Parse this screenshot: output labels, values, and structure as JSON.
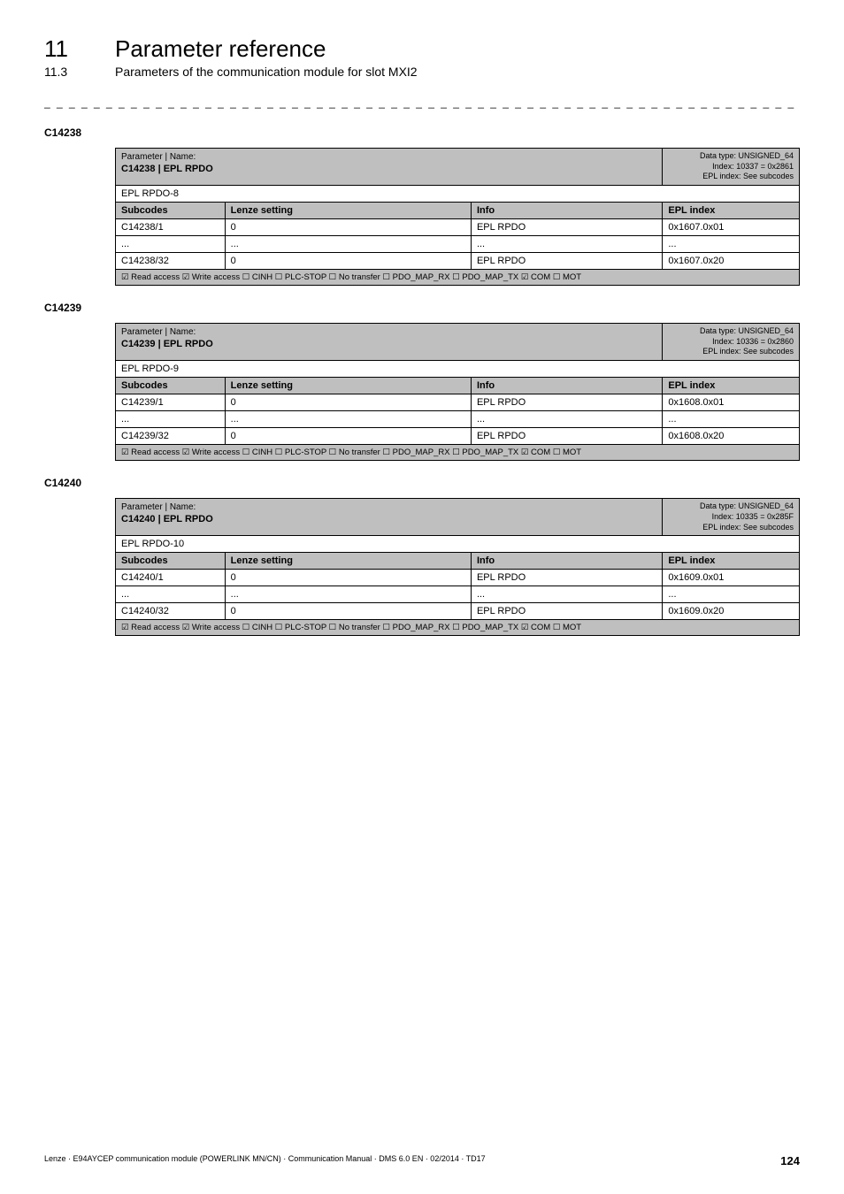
{
  "header": {
    "chapterNum": "11",
    "chapterTitle": "Parameter reference",
    "sectionNum": "11.3",
    "sectionTitle": "Parameters of the communication module for slot MXI2"
  },
  "dashes": "_ _ _ _ _ _ _ _ _ _ _ _ _ _ _ _ _ _ _ _ _ _ _ _ _ _ _ _ _ _ _ _ _ _ _ _ _ _ _ _ _ _ _ _ _ _ _ _ _ _ _ _ _ _ _ _ _ _ _ _ _ _ _ _",
  "paramHeader": {
    "nameLabel": "Parameter | Name:",
    "col1": "Subcodes",
    "col2": "Lenze setting",
    "col3": "Info",
    "col4": "EPL index"
  },
  "flagsLine": "☑ Read access   ☑ Write access   ☐ CINH   ☐ PLC-STOP   ☐ No transfer   ☐ PDO_MAP_RX   ☐ PDO_MAP_TX   ☑ COM   ☐ MOT",
  "params": [
    {
      "code": "C14238",
      "pnCode": "C14238 | EPL RPDO",
      "meta": [
        "Data type: UNSIGNED_64",
        "Index: 10337 = 0x2861",
        "EPL index: See subcodes"
      ],
      "desc": "EPL RPDO-8",
      "rows": [
        {
          "sub": "C14238/1",
          "lenze": "0",
          "info": "EPL RPDO",
          "epl": "0x1607.0x01"
        },
        {
          "sub": "...",
          "lenze": "...",
          "info": "...",
          "epl": "..."
        },
        {
          "sub": "C14238/32",
          "lenze": "0",
          "info": "EPL RPDO",
          "epl": "0x1607.0x20"
        }
      ]
    },
    {
      "code": "C14239",
      "pnCode": "C14239 | EPL RPDO",
      "meta": [
        "Data type: UNSIGNED_64",
        "Index: 10336 = 0x2860",
        "EPL index: See subcodes"
      ],
      "desc": "EPL RPDO-9",
      "rows": [
        {
          "sub": "C14239/1",
          "lenze": "0",
          "info": "EPL RPDO",
          "epl": "0x1608.0x01"
        },
        {
          "sub": "...",
          "lenze": "...",
          "info": "...",
          "epl": "..."
        },
        {
          "sub": "C14239/32",
          "lenze": "0",
          "info": "EPL RPDO",
          "epl": "0x1608.0x20"
        }
      ]
    },
    {
      "code": "C14240",
      "pnCode": "C14240 | EPL RPDO",
      "meta": [
        "Data type: UNSIGNED_64",
        "Index: 10335 = 0x285F",
        "EPL index: See subcodes"
      ],
      "desc": "EPL RPDO-10",
      "rows": [
        {
          "sub": "C14240/1",
          "lenze": "0",
          "info": "EPL RPDO",
          "epl": "0x1609.0x01"
        },
        {
          "sub": "...",
          "lenze": "...",
          "info": "...",
          "epl": "..."
        },
        {
          "sub": "C14240/32",
          "lenze": "0",
          "info": "EPL RPDO",
          "epl": "0x1609.0x20"
        }
      ]
    }
  ],
  "footer": {
    "left": "Lenze · E94AYCEP communication module (POWERLINK MN/CN) · Communication Manual · DMS 6.0 EN · 02/2014 · TD17",
    "page": "124"
  }
}
